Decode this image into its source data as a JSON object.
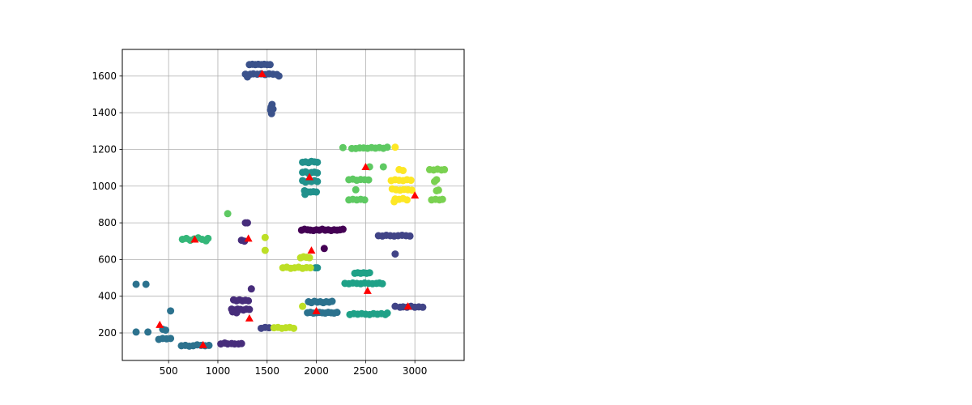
{
  "chart_data": {
    "type": "scatter",
    "title": "",
    "xlabel": "",
    "ylabel": "",
    "xlim": [
      30,
      3500
    ],
    "ylim": [
      50,
      1745
    ],
    "xticks": [
      500,
      1000,
      1500,
      2000,
      2500,
      3000
    ],
    "yticks": [
      200,
      400,
      600,
      800,
      1000,
      1200,
      1400,
      1600
    ],
    "grid": true,
    "legend": "none",
    "clusters": [
      {
        "color": "#3b528b",
        "points": [
          [
            1280,
            1610
          ],
          [
            1300,
            1595
          ],
          [
            1330,
            1610
          ],
          [
            1360,
            1612
          ],
          [
            1400,
            1610
          ],
          [
            1440,
            1612
          ],
          [
            1480,
            1608
          ],
          [
            1520,
            1612
          ],
          [
            1560,
            1610
          ],
          [
            1600,
            1608
          ],
          [
            1620,
            1600
          ],
          [
            1320,
            1662
          ],
          [
            1350,
            1664
          ],
          [
            1380,
            1662
          ],
          [
            1410,
            1664
          ],
          [
            1440,
            1662
          ],
          [
            1470,
            1664
          ],
          [
            1500,
            1662
          ],
          [
            1530,
            1662
          ],
          [
            1550,
            1445
          ],
          [
            1540,
            1430
          ],
          [
            1560,
            1420
          ],
          [
            1535,
            1415
          ],
          [
            1545,
            1395
          ]
        ]
      },
      {
        "color": "#21918c",
        "points": [
          [
            1860,
            1130
          ],
          [
            1890,
            1132
          ],
          [
            1920,
            1128
          ],
          [
            1950,
            1135
          ],
          [
            1980,
            1132
          ],
          [
            2010,
            1130
          ],
          [
            1860,
            1075
          ],
          [
            1890,
            1078
          ],
          [
            1920,
            1070
          ],
          [
            1950,
            1074
          ],
          [
            1980,
            1076
          ],
          [
            2010,
            1072
          ],
          [
            1860,
            1030
          ],
          [
            1890,
            1022
          ],
          [
            1920,
            1028
          ],
          [
            1950,
            1025
          ],
          [
            1980,
            1030
          ],
          [
            2010,
            1025
          ],
          [
            1880,
            975
          ],
          [
            1910,
            968
          ],
          [
            1940,
            968
          ],
          [
            1970,
            970
          ],
          [
            2000,
            968
          ],
          [
            1885,
            955
          ],
          [
            1990,
            555
          ],
          [
            2010,
            555
          ]
        ]
      },
      {
        "color": "#5ec962",
        "points": [
          [
            2270,
            1210
          ],
          [
            2360,
            1205
          ],
          [
            2400,
            1205
          ],
          [
            2440,
            1208
          ],
          [
            2480,
            1208
          ],
          [
            2520,
            1206
          ],
          [
            2560,
            1210
          ],
          [
            2600,
            1207
          ],
          [
            2640,
            1210
          ],
          [
            2680,
            1206
          ],
          [
            2720,
            1212
          ],
          [
            2540,
            1105
          ],
          [
            2680,
            1105
          ],
          [
            2330,
            1035
          ],
          [
            2370,
            1038
          ],
          [
            2410,
            1032
          ],
          [
            2450,
            1036
          ],
          [
            2490,
            1035
          ],
          [
            2530,
            1034
          ],
          [
            2400,
            980
          ],
          [
            2330,
            925
          ],
          [
            2370,
            928
          ],
          [
            2410,
            925
          ],
          [
            2450,
            928
          ],
          [
            2490,
            925
          ],
          [
            1100,
            850
          ]
        ]
      },
      {
        "color": "#fde725",
        "points": [
          [
            2800,
            1212
          ],
          [
            2760,
            1030
          ],
          [
            2800,
            1035
          ],
          [
            2840,
            1032
          ],
          [
            2880,
            1030
          ],
          [
            2920,
            1035
          ],
          [
            2960,
            1032
          ],
          [
            2840,
            1090
          ],
          [
            2880,
            1085
          ],
          [
            2770,
            985
          ],
          [
            2810,
            980
          ],
          [
            2850,
            978
          ],
          [
            2890,
            982
          ],
          [
            2930,
            980
          ],
          [
            2970,
            978
          ],
          [
            2800,
            930
          ],
          [
            2840,
            928
          ],
          [
            2880,
            932
          ],
          [
            2920,
            925
          ],
          [
            2790,
            915
          ]
        ]
      },
      {
        "color": "#7ad151",
        "points": [
          [
            3150,
            1090
          ],
          [
            3190,
            1088
          ],
          [
            3230,
            1092
          ],
          [
            3270,
            1088
          ],
          [
            3300,
            1090
          ],
          [
            3220,
            1035
          ],
          [
            3200,
            1025
          ],
          [
            3220,
            975
          ],
          [
            3240,
            978
          ],
          [
            3170,
            925
          ],
          [
            3210,
            928
          ],
          [
            3250,
            925
          ],
          [
            3280,
            928
          ]
        ]
      },
      {
        "color": "#440154",
        "points": [
          [
            1850,
            760
          ],
          [
            1880,
            765
          ],
          [
            1910,
            762
          ],
          [
            1940,
            760
          ],
          [
            1970,
            758
          ],
          [
            2000,
            762
          ],
          [
            2030,
            760
          ],
          [
            2060,
            765
          ],
          [
            2090,
            760
          ],
          [
            2120,
            762
          ],
          [
            2150,
            758
          ],
          [
            2180,
            762
          ],
          [
            2210,
            760
          ],
          [
            2240,
            762
          ],
          [
            2270,
            765
          ],
          [
            2080,
            660
          ]
        ]
      },
      {
        "color": "#472d7b",
        "points": [
          [
            1240,
            705
          ],
          [
            1270,
            700
          ],
          [
            1280,
            800
          ],
          [
            1300,
            800
          ],
          [
            1340,
            440
          ],
          [
            1160,
            380
          ],
          [
            1190,
            375
          ],
          [
            1220,
            380
          ],
          [
            1250,
            375
          ],
          [
            1280,
            378
          ],
          [
            1310,
            375
          ],
          [
            1140,
            330
          ],
          [
            1170,
            325
          ],
          [
            1200,
            330
          ],
          [
            1230,
            328
          ],
          [
            1260,
            325
          ],
          [
            1290,
            330
          ],
          [
            1320,
            328
          ],
          [
            1150,
            315
          ],
          [
            1190,
            310
          ],
          [
            1030,
            140
          ],
          [
            1070,
            145
          ],
          [
            1100,
            140
          ],
          [
            1140,
            142
          ],
          [
            1170,
            140
          ],
          [
            1210,
            140
          ],
          [
            1240,
            142
          ]
        ]
      },
      {
        "color": "#414487",
        "points": [
          [
            2630,
            730
          ],
          [
            2670,
            728
          ],
          [
            2710,
            732
          ],
          [
            2750,
            730
          ],
          [
            2790,
            728
          ],
          [
            2830,
            730
          ],
          [
            2870,
            732
          ],
          [
            2910,
            730
          ],
          [
            2950,
            728
          ],
          [
            2800,
            630
          ],
          [
            2800,
            345
          ],
          [
            2850,
            340
          ],
          [
            2880,
            342
          ],
          [
            2920,
            340
          ],
          [
            2960,
            345
          ],
          [
            3000,
            340
          ],
          [
            3040,
            342
          ],
          [
            3080,
            340
          ],
          [
            1440,
            225
          ],
          [
            1480,
            230
          ],
          [
            1520,
            228
          ]
        ]
      },
      {
        "color": "#2c728e",
        "points": [
          [
            170,
            465
          ],
          [
            270,
            465
          ],
          [
            520,
            320
          ],
          [
            170,
            205
          ],
          [
            290,
            205
          ],
          [
            400,
            165
          ],
          [
            440,
            170
          ],
          [
            480,
            168
          ],
          [
            520,
            170
          ],
          [
            440,
            220
          ],
          [
            470,
            215
          ],
          [
            630,
            130
          ],
          [
            670,
            132
          ],
          [
            710,
            128
          ],
          [
            750,
            130
          ],
          [
            790,
            135
          ],
          [
            830,
            132
          ],
          [
            870,
            130
          ],
          [
            910,
            132
          ],
          [
            1920,
            370
          ],
          [
            1950,
            365
          ],
          [
            1980,
            372
          ],
          [
            2010,
            368
          ],
          [
            2040,
            370
          ],
          [
            2070,
            365
          ],
          [
            2100,
            370
          ],
          [
            2130,
            368
          ],
          [
            2160,
            372
          ],
          [
            1910,
            310
          ],
          [
            1940,
            312
          ],
          [
            1970,
            308
          ],
          [
            2000,
            310
          ],
          [
            2030,
            312
          ],
          [
            2060,
            310
          ],
          [
            2090,
            308
          ],
          [
            2120,
            312
          ],
          [
            2150,
            310
          ],
          [
            2180,
            308
          ],
          [
            2210,
            312
          ]
        ]
      },
      {
        "color": "#1fa187",
        "points": [
          [
            2390,
            525
          ],
          [
            2420,
            528
          ],
          [
            2450,
            525
          ],
          [
            2480,
            528
          ],
          [
            2510,
            525
          ],
          [
            2540,
            528
          ],
          [
            2290,
            470
          ],
          [
            2330,
            468
          ],
          [
            2370,
            472
          ],
          [
            2410,
            470
          ],
          [
            2450,
            468
          ],
          [
            2490,
            472
          ],
          [
            2530,
            470
          ],
          [
            2570,
            468
          ],
          [
            2610,
            470
          ],
          [
            2640,
            472
          ],
          [
            2670,
            468
          ],
          [
            2340,
            300
          ],
          [
            2380,
            305
          ],
          [
            2420,
            302
          ],
          [
            2460,
            305
          ],
          [
            2500,
            302
          ],
          [
            2540,
            300
          ],
          [
            2580,
            305
          ],
          [
            2620,
            302
          ],
          [
            2660,
            305
          ],
          [
            2700,
            300
          ],
          [
            2720,
            308
          ]
        ]
      },
      {
        "color": "#35b779",
        "points": [
          [
            640,
            710
          ],
          [
            680,
            715
          ],
          [
            720,
            705
          ],
          [
            760,
            712
          ],
          [
            800,
            718
          ],
          [
            840,
            710
          ],
          [
            880,
            702
          ],
          [
            900,
            715
          ]
        ]
      },
      {
        "color": "#bddf26",
        "points": [
          [
            1480,
            720
          ],
          [
            1480,
            650
          ],
          [
            1840,
            610
          ],
          [
            1870,
            615
          ],
          [
            1900,
            612
          ],
          [
            1930,
            610
          ],
          [
            1660,
            555
          ],
          [
            1700,
            558
          ],
          [
            1740,
            552
          ],
          [
            1780,
            555
          ],
          [
            1820,
            558
          ],
          [
            1860,
            552
          ],
          [
            1900,
            556
          ],
          [
            1940,
            555
          ],
          [
            1860,
            345
          ],
          [
            1570,
            228
          ],
          [
            1610,
            230
          ],
          [
            1650,
            225
          ],
          [
            1690,
            228
          ],
          [
            1730,
            230
          ],
          [
            1770,
            225
          ]
        ]
      }
    ],
    "triangles": {
      "color": "#ff0000",
      "points": [
        [
          1450,
          1612
        ],
        [
          1930,
          1050
        ],
        [
          2500,
          1105
        ],
        [
          3000,
          950
        ],
        [
          765,
          710
        ],
        [
          1310,
          715
        ],
        [
          1950,
          650
        ],
        [
          2520,
          430
        ],
        [
          1320,
          280
        ],
        [
          2000,
          320
        ],
        [
          2930,
          345
        ],
        [
          410,
          245
        ],
        [
          850,
          135
        ]
      ]
    }
  }
}
